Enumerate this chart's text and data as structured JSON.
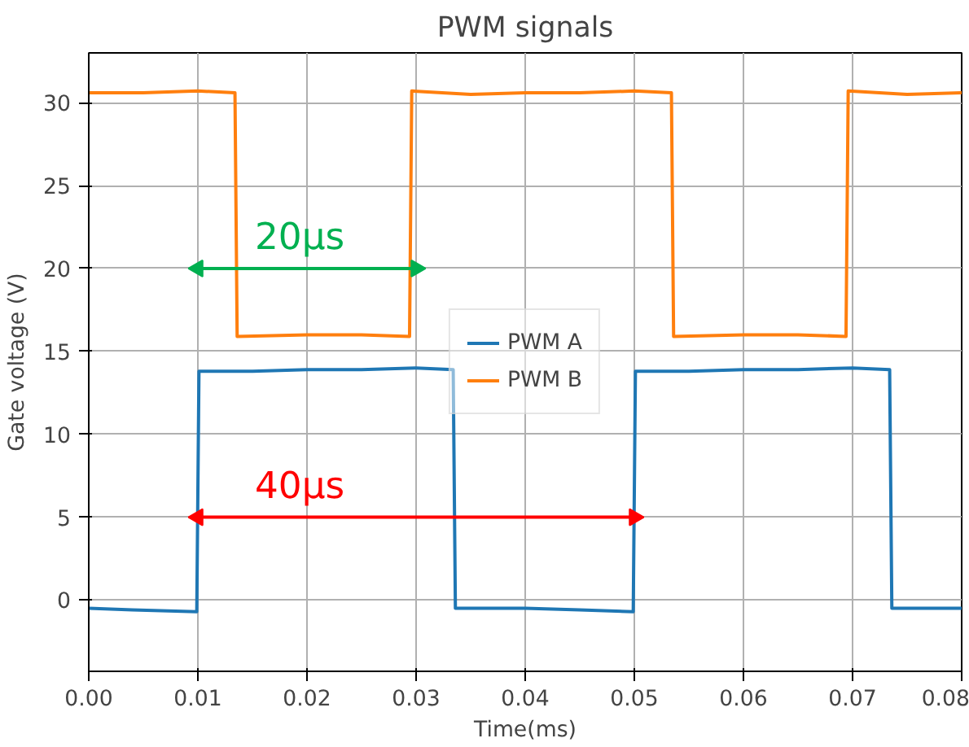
{
  "chart_data": {
    "type": "line",
    "title": "PWM signals",
    "xlabel": "Time(ms)",
    "ylabel": "Gate voltage (V)",
    "xlim": [
      0,
      0.08
    ],
    "ylim": [
      -4.3,
      33
    ],
    "xticks": [
      {
        "value": 0,
        "label": "0.00"
      },
      {
        "value": 0.01,
        "label": "0.01"
      },
      {
        "value": 0.02,
        "label": "0.02"
      },
      {
        "value": 0.03,
        "label": "0.03"
      },
      {
        "value": 0.04,
        "label": "0.04"
      },
      {
        "value": 0.05,
        "label": "0.05"
      },
      {
        "value": 0.06,
        "label": "0.06"
      },
      {
        "value": 0.07,
        "label": "0.07"
      },
      {
        "value": 0.08,
        "label": "0.08"
      }
    ],
    "yticks": [
      0,
      5,
      10,
      15,
      20,
      25,
      30
    ],
    "grid": true,
    "legend": "center",
    "line_style": "solid",
    "series": [
      {
        "name": "PWM A",
        "color": "#1f77b4",
        "x": [
          0,
          0.004,
          0.0099,
          0.0101,
          0.015,
          0.02,
          0.025,
          0.03,
          0.0334,
          0.0336,
          0.04,
          0.045,
          0.0499,
          0.0501,
          0.055,
          0.06,
          0.065,
          0.07,
          0.0734,
          0.0736,
          0.08
        ],
        "values": [
          -0.5,
          -0.6,
          -0.7,
          13.8,
          13.8,
          13.9,
          13.9,
          14.0,
          13.9,
          -0.5,
          -0.5,
          -0.6,
          -0.7,
          13.8,
          13.8,
          13.9,
          13.9,
          14.0,
          13.9,
          -0.5,
          -0.5
        ]
      },
      {
        "name": "PWM B",
        "color": "#ff7f0e",
        "x": [
          0,
          0.005,
          0.01,
          0.0134,
          0.0136,
          0.02,
          0.025,
          0.0294,
          0.0296,
          0.035,
          0.04,
          0.045,
          0.05,
          0.0534,
          0.0536,
          0.06,
          0.065,
          0.0694,
          0.0696,
          0.075,
          0.08
        ],
        "values": [
          30.6,
          30.6,
          30.7,
          30.6,
          15.9,
          16.0,
          16.0,
          15.9,
          30.7,
          30.5,
          30.6,
          30.6,
          30.7,
          30.6,
          15.9,
          16.0,
          16.0,
          15.9,
          30.7,
          30.5,
          30.6
        ]
      },
      {
        "color": "#00b050",
        "marker": "triangle",
        "x": [
          0.01,
          0.03
        ],
        "values": [
          20,
          20
        ]
      },
      {
        "color": "#ff0000",
        "marker": "triangle",
        "x": [
          0.01,
          0.05
        ],
        "values": [
          5,
          5
        ]
      }
    ],
    "annotations": [
      "20µs",
      "40µs"
    ]
  }
}
